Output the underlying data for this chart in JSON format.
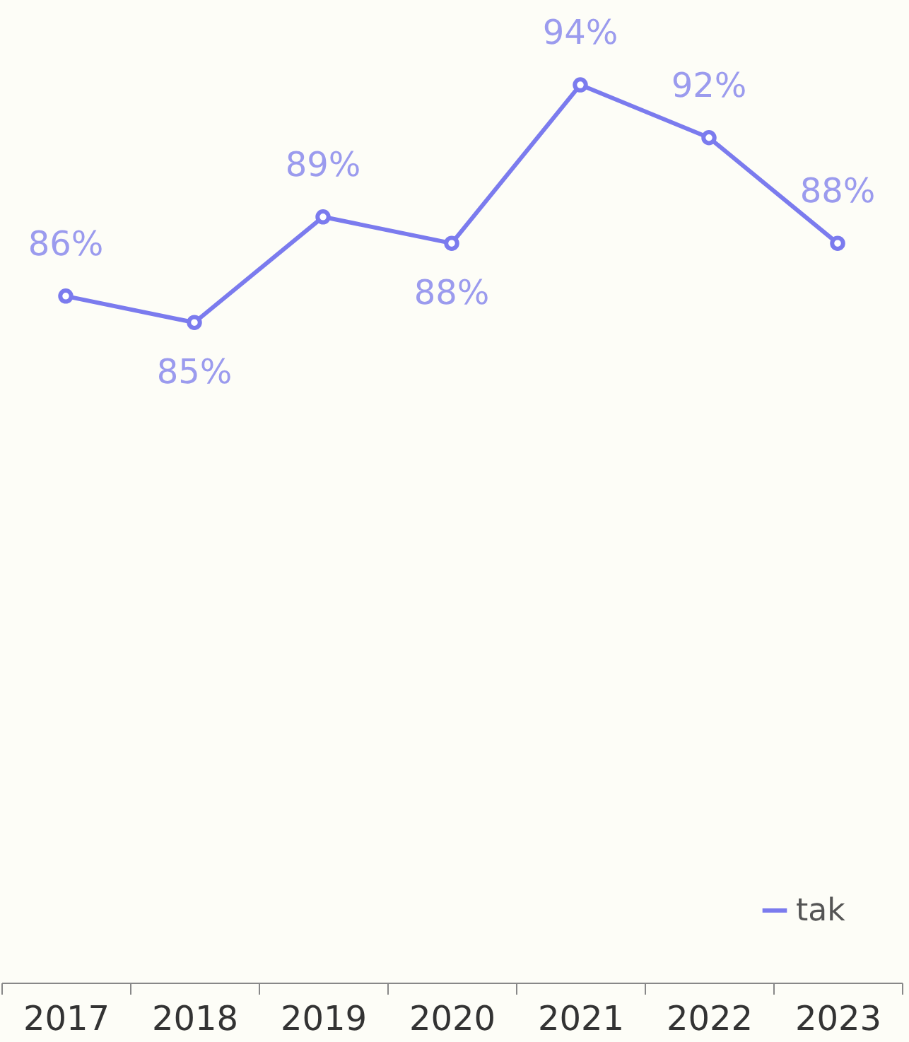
{
  "chart_data": {
    "type": "line",
    "categories": [
      "2017",
      "2018",
      "2019",
      "2020",
      "2021",
      "2022",
      "2023"
    ],
    "series": [
      {
        "name": "tak",
        "color": "#7b7bee",
        "values": [
          86,
          85,
          89,
          88,
          94,
          92,
          88
        ],
        "value_labels": [
          "86%",
          "85%",
          "89%",
          "88%",
          "94%",
          "92%",
          "88%"
        ]
      }
    ],
    "ylim": [
      60,
      97
    ],
    "tick_labels": "x",
    "grid": false,
    "legend": "bottom right",
    "marker": "circle",
    "line_style": "solid"
  }
}
